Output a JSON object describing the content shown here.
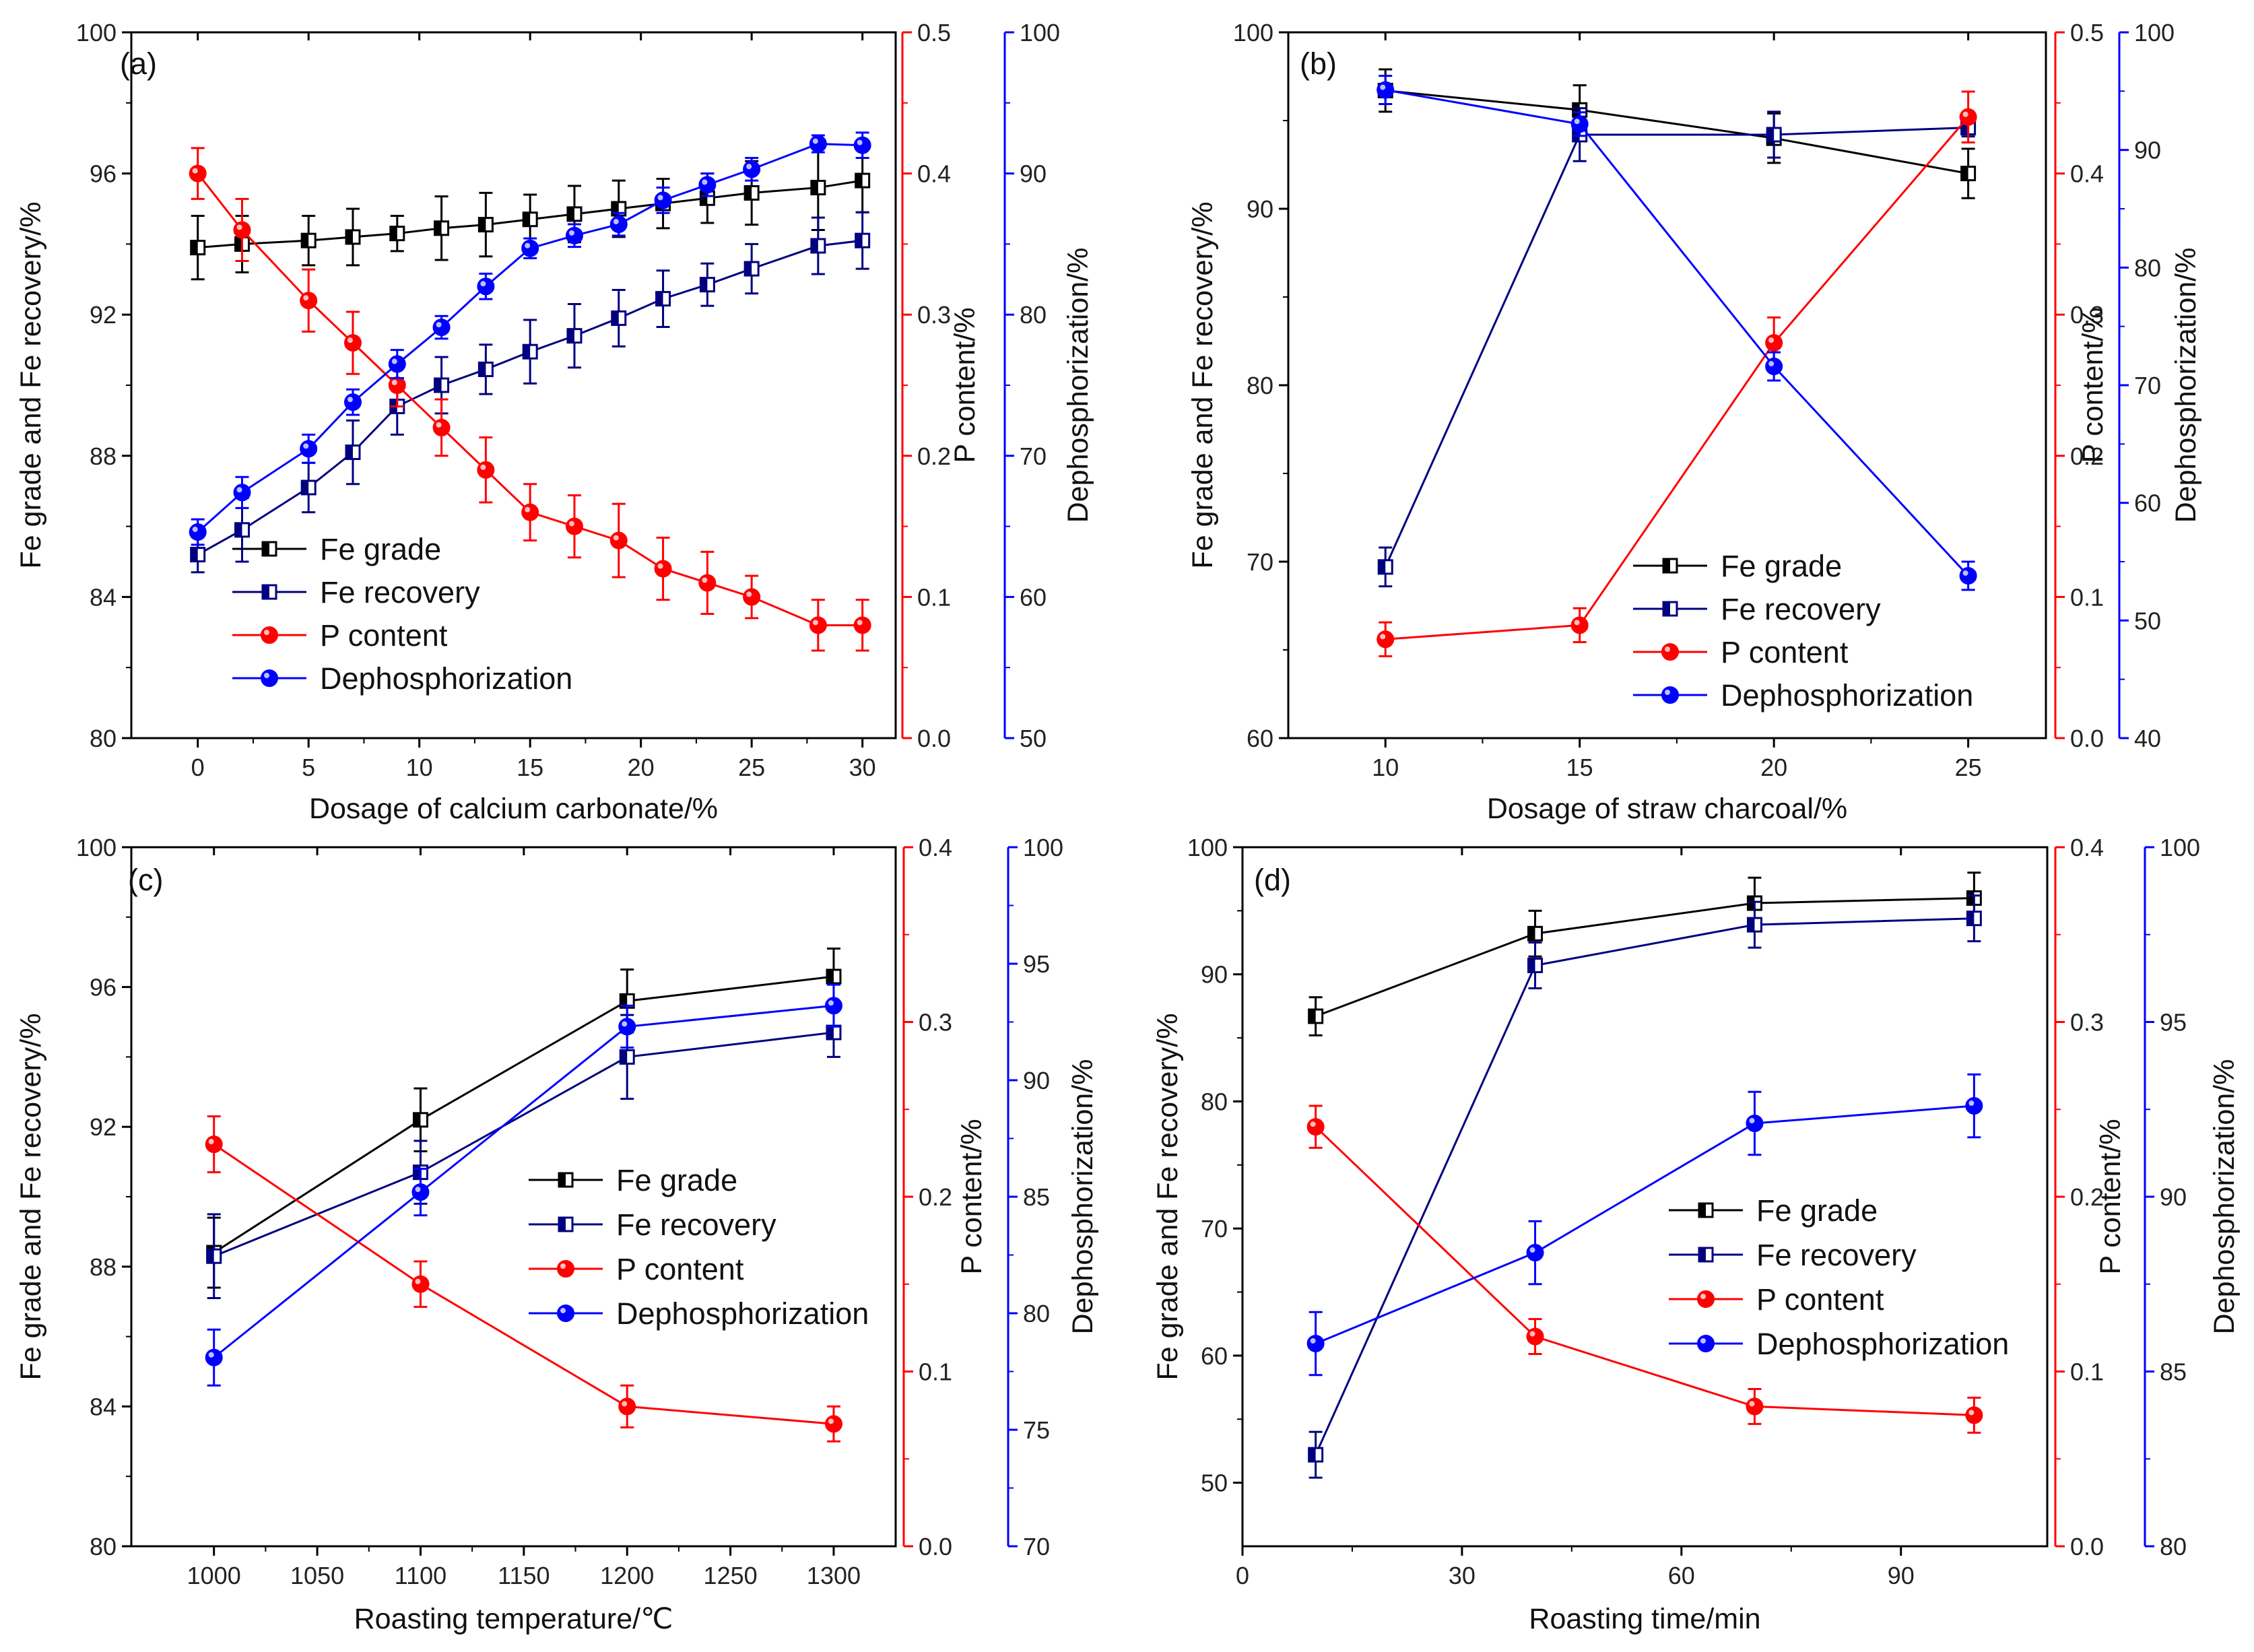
{
  "colors": {
    "fe_grade": "#000000",
    "fe_recovery": "#000080",
    "p_content": "#ff0000",
    "dephosphorization": "#0000ff"
  },
  "legend_labels": {
    "fe_grade": "Fe grade",
    "fe_recovery": "Fe recovery",
    "p_content": "P  content",
    "dephosphorization": "Dephosphorization"
  },
  "chart_data": [
    {
      "type": "line",
      "panel_label": "(a)",
      "xlabel": "Dosage of calcium carbonate/%",
      "ylabel_left": "Fe grade and Fe recovery/%",
      "ylabel_p": "P  content/%",
      "ylabel_dephos": "Dephosphorization/%",
      "xlim": [
        -3,
        31.5
      ],
      "xticks": [
        0,
        5,
        10,
        15,
        20,
        25,
        30
      ],
      "ylim_left": [
        80,
        100
      ],
      "yticks_left": [
        80,
        84,
        88,
        92,
        96,
        100
      ],
      "ylim_p": [
        0,
        0.5
      ],
      "yticks_p": [
        "0.0",
        "0.1",
        "0.2",
        "0.3",
        "0.4",
        "0.5"
      ],
      "ylim_dephos": [
        50,
        100
      ],
      "yticks_dephos": [
        50,
        60,
        70,
        80,
        90,
        100
      ],
      "legend_position": "lower-left",
      "series": [
        {
          "name": "Fe grade",
          "key": "fe_grade",
          "axis": "left",
          "marker": "half-square",
          "x": [
            0,
            2,
            5,
            7,
            9,
            11,
            13,
            15,
            17,
            19,
            21,
            23,
            25,
            28,
            30
          ],
          "y": [
            93.9,
            94.0,
            94.1,
            94.2,
            94.3,
            94.45,
            94.55,
            94.7,
            94.85,
            95.0,
            95.15,
            95.3,
            95.45,
            95.6,
            95.8
          ],
          "err": [
            0.9,
            0.8,
            0.7,
            0.8,
            0.5,
            0.9,
            0.9,
            0.7,
            0.8,
            0.8,
            0.7,
            0.7,
            0.9,
            1.2,
            0.9
          ]
        },
        {
          "name": "Fe recovery",
          "key": "fe_recovery",
          "axis": "left",
          "marker": "half-square",
          "x": [
            0,
            2,
            5,
            7,
            9,
            11,
            13,
            15,
            17,
            19,
            21,
            23,
            25,
            28,
            30
          ],
          "y": [
            85.2,
            85.9,
            87.1,
            88.1,
            89.4,
            90.0,
            90.45,
            90.95,
            91.4,
            91.9,
            92.45,
            92.85,
            93.3,
            93.95,
            94.1
          ],
          "err": [
            0.5,
            0.9,
            0.7,
            0.9,
            0.8,
            0.8,
            0.7,
            0.9,
            0.9,
            0.8,
            0.8,
            0.6,
            0.7,
            0.8,
            0.8
          ]
        },
        {
          "name": "P  content",
          "key": "p_content",
          "axis": "p",
          "marker": "circle",
          "x": [
            0,
            2,
            5,
            7,
            9,
            11,
            13,
            15,
            17,
            19,
            21,
            23,
            25,
            28,
            30
          ],
          "y": [
            0.4,
            0.36,
            0.31,
            0.28,
            0.25,
            0.22,
            0.19,
            0.16,
            0.15,
            0.14,
            0.12,
            0.11,
            0.1,
            0.08,
            0.08
          ],
          "err": [
            0.018,
            0.022,
            0.022,
            0.022,
            0.015,
            0.02,
            0.023,
            0.02,
            0.022,
            0.026,
            0.022,
            0.022,
            0.015,
            0.018,
            0.018
          ]
        },
        {
          "name": "Dephosphorization",
          "key": "dephosphorization",
          "axis": "dephos",
          "marker": "circle",
          "x": [
            0,
            2,
            5,
            7,
            9,
            11,
            13,
            15,
            17,
            19,
            21,
            23,
            25,
            28,
            30
          ],
          "y": [
            64.6,
            67.4,
            70.5,
            73.8,
            76.5,
            79.1,
            82.0,
            84.7,
            85.6,
            86.4,
            88.1,
            89.2,
            90.3,
            92.1,
            92.0
          ],
          "err": [
            0.9,
            1.1,
            1.0,
            0.9,
            1.0,
            0.8,
            0.9,
            0.7,
            0.8,
            0.8,
            0.9,
            0.8,
            0.8,
            0.6,
            0.9
          ]
        }
      ]
    },
    {
      "type": "line",
      "panel_label": "(b)",
      "xlabel": "Dosage of straw charcoal/%",
      "ylabel_left": "Fe grade and Fe recovery/%",
      "ylabel_p": "P content/%",
      "ylabel_dephos": "Dephosphorization/%",
      "xlim": [
        7.5,
        27
      ],
      "xticks": [
        10,
        15,
        20,
        25
      ],
      "ylim_left": [
        60,
        100
      ],
      "yticks_left": [
        60,
        70,
        80,
        90,
        100
      ],
      "ylim_p": [
        0,
        0.5
      ],
      "yticks_p": [
        "0.0",
        "0.1",
        "0.2",
        "0.3",
        "0.4",
        "0.5"
      ],
      "ylim_dephos": [
        40,
        100
      ],
      "yticks_dephos": [
        40,
        50,
        60,
        70,
        80,
        90,
        100
      ],
      "legend_position": "lower-right",
      "series": [
        {
          "name": "Fe grade",
          "key": "fe_grade",
          "axis": "left",
          "marker": "half-square",
          "x": [
            10,
            15,
            20,
            25
          ],
          "y": [
            96.7,
            95.6,
            94.0,
            92.0
          ],
          "err": [
            1.2,
            1.4,
            1.4,
            1.4
          ]
        },
        {
          "name": "Fe recovery",
          "key": "fe_recovery",
          "axis": "left",
          "marker": "half-square",
          "x": [
            10,
            15,
            20,
            25
          ],
          "y": [
            69.7,
            94.2,
            94.2,
            94.6
          ],
          "err": [
            1.1,
            1.5,
            1.3,
            0.5
          ]
        },
        {
          "name": "P content",
          "key": "p_content",
          "axis": "p",
          "marker": "circle",
          "x": [
            10,
            15,
            20,
            25
          ],
          "y": [
            0.07,
            0.08,
            0.28,
            0.44
          ],
          "err": [
            0.012,
            0.012,
            0.018,
            0.018
          ]
        },
        {
          "name": "Dephosphorization",
          "key": "dephosphorization",
          "axis": "dephos",
          "marker": "circle",
          "x": [
            10,
            15,
            20,
            25
          ],
          "y": [
            95.1,
            92.2,
            71.6,
            53.8
          ],
          "err": [
            1.2,
            1.0,
            1.2,
            1.2
          ]
        }
      ]
    },
    {
      "type": "line",
      "panel_label": "(c)",
      "xlabel": "Roasting temperature/℃",
      "ylabel_left": "Fe grade and Fe recovery/%",
      "ylabel_p": "P content/%",
      "ylabel_dephos": "Dephosphorization/%",
      "xlim": [
        960,
        1330
      ],
      "xticks": [
        1000,
        1050,
        1100,
        1150,
        1200,
        1250,
        1300
      ],
      "ylim_left": [
        80,
        100
      ],
      "yticks_left": [
        80,
        84,
        88,
        92,
        96,
        100
      ],
      "ylim_p": [
        0,
        0.4
      ],
      "yticks_p": [
        "0.0",
        "0.1",
        "0.2",
        "0.3",
        "0.4"
      ],
      "ylim_dephos": [
        70,
        100
      ],
      "yticks_dephos": [
        70,
        75,
        80,
        85,
        90,
        95,
        100
      ],
      "legend_position": "center-right",
      "series": [
        {
          "name": "Fe grade",
          "key": "fe_grade",
          "axis": "left",
          "marker": "half-square",
          "x": [
            1000,
            1100,
            1200,
            1300
          ],
          "y": [
            88.4,
            92.2,
            95.6,
            96.3
          ],
          "err": [
            1.0,
            0.9,
            0.9,
            0.8
          ]
        },
        {
          "name": "Fe recovery",
          "key": "fe_recovery",
          "axis": "left",
          "marker": "half-square",
          "x": [
            1000,
            1100,
            1200,
            1300
          ],
          "y": [
            88.3,
            90.7,
            94.0,
            94.7
          ],
          "err": [
            1.2,
            0.9,
            1.2,
            0.7
          ]
        },
        {
          "name": "P content",
          "key": "p_content",
          "axis": "p",
          "marker": "circle",
          "x": [
            1000,
            1100,
            1200,
            1300
          ],
          "y": [
            0.23,
            0.15,
            0.08,
            0.07
          ],
          "err": [
            0.016,
            0.013,
            0.012,
            0.01
          ]
        },
        {
          "name": "Dephosphorization",
          "key": "dephosphorization",
          "axis": "dephos",
          "marker": "circle",
          "x": [
            1000,
            1100,
            1200,
            1300
          ],
          "y": [
            78.1,
            85.2,
            92.3,
            93.2
          ],
          "err": [
            1.2,
            1.0,
            0.9,
            0.9
          ]
        }
      ]
    },
    {
      "type": "line",
      "panel_label": "(d)",
      "xlabel": "Roasting time/min",
      "ylabel_left": "Fe grade and Fe recovery/%",
      "ylabel_p": "P content/%",
      "ylabel_dephos": "Dephosphorization/%",
      "xlim": [
        0,
        110
      ],
      "xticks": [
        0,
        30,
        60,
        90
      ],
      "ylim_left": [
        45,
        100
      ],
      "yticks_left": [
        50,
        60,
        70,
        80,
        90,
        100
      ],
      "ylim_p": [
        0,
        0.4
      ],
      "yticks_p": [
        "0.0",
        "0.1",
        "0.2",
        "0.3",
        "0.4"
      ],
      "ylim_dephos": [
        80,
        100
      ],
      "yticks_dephos": [
        80,
        85,
        90,
        95,
        100
      ],
      "legend_position": "lower-right",
      "series": [
        {
          "name": "Fe grade",
          "key": "fe_grade",
          "axis": "left",
          "marker": "half-square",
          "x": [
            10,
            40,
            70,
            100
          ],
          "y": [
            86.7,
            93.2,
            95.6,
            96.0
          ],
          "err": [
            1.5,
            1.8,
            2.0,
            2.0
          ]
        },
        {
          "name": "Fe recovery",
          "key": "fe_recovery",
          "axis": "left",
          "marker": "half-square",
          "x": [
            10,
            40,
            70,
            100
          ],
          "y": [
            52.2,
            90.7,
            93.9,
            94.4
          ],
          "err": [
            1.8,
            1.8,
            1.8,
            1.8
          ]
        },
        {
          "name": "P content",
          "key": "p_content",
          "axis": "p",
          "marker": "circle",
          "x": [
            10,
            40,
            70,
            100
          ],
          "y": [
            0.24,
            0.12,
            0.08,
            0.075
          ],
          "err": [
            0.012,
            0.01,
            0.01,
            0.01
          ]
        },
        {
          "name": "Dephosphorization",
          "key": "dephosphorization",
          "axis": "dephos",
          "marker": "circle",
          "x": [
            10,
            40,
            70,
            100
          ],
          "y": [
            85.8,
            88.4,
            92.1,
            92.6
          ],
          "err": [
            0.9,
            0.9,
            0.9,
            0.9
          ]
        }
      ]
    }
  ]
}
